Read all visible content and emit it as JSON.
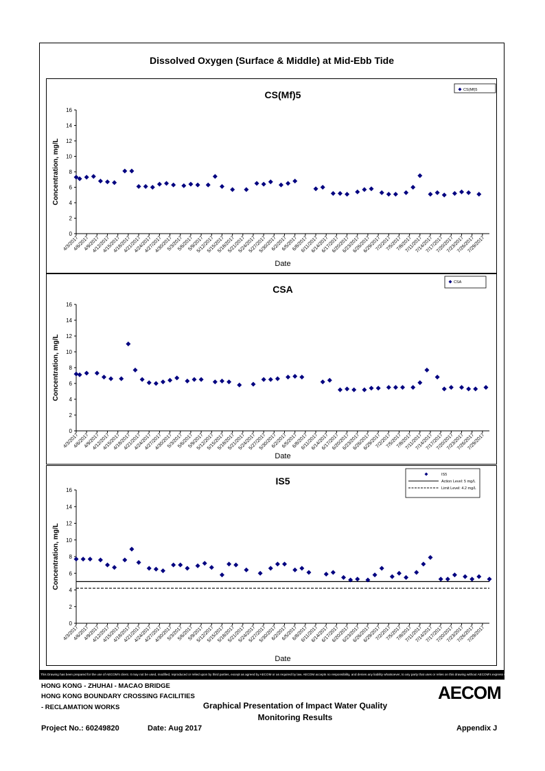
{
  "main_title": "Dissolved Oxygen (Surface & Middle) at Mid-Ebb Tide",
  "disclaimer": "This Drawing has been prepared for the use of AECOM's client. It may not be used, modified, reproduced or relied upon by third parties, except as agreed by AECOM or as required by law. AECOM accepts no responsibility, and denies any liability whatsoever, to any party that uses or relies on this drawing without AECOM's express written consent.",
  "footer": {
    "project_line1": "HONG KONG - ZHUHAI - MACAO BRIDGE",
    "project_line2": "HONG KONG BOUNDARY CROSSING FACILITIES",
    "project_line3": "- RECLAMATION WORKS",
    "report_title_line1": "Graphical Presentation of Impact Water Quality",
    "report_title_line2": "Monitoring Results",
    "project_no": "Project No.: 60249820",
    "date": "Date: Aug 2017",
    "appendix": "Appendix J",
    "logo": "AECOM"
  },
  "chart_data": [
    {
      "type": "scatter",
      "title": "CS(Mf)5",
      "xlabel": "Date",
      "ylabel": "Concentration, mg/L",
      "ylim": [
        0,
        16
      ],
      "yticks": [
        0,
        2,
        4,
        6,
        8,
        10,
        12,
        14,
        16
      ],
      "xticks": [
        "4/3/2017",
        "4/6/2017",
        "4/9/2017",
        "4/12/2017",
        "4/15/2017",
        "4/18/2017",
        "4/21/2017",
        "4/24/2017",
        "4/27/2017",
        "4/30/2017",
        "5/3/2017",
        "5/6/2017",
        "5/9/2017",
        "5/12/2017",
        "5/15/2017",
        "5/18/2017",
        "5/21/2017",
        "5/24/2017",
        "5/27/2017",
        "5/30/2017",
        "6/2/2017",
        "6/5/2017",
        "6/8/2017",
        "6/11/2017",
        "6/14/2017",
        "6/17/2017",
        "6/20/2017",
        "6/23/2017",
        "6/26/2017",
        "6/29/2017",
        "7/2/2017",
        "7/5/2017",
        "7/8/2017",
        "7/11/2017",
        "7/14/2017",
        "7/17/2017",
        "7/20/2017",
        "7/23/2017",
        "7/26/2017",
        "7/29/2017"
      ],
      "xlim": [
        "4/3/2017",
        "7/31/2017"
      ],
      "legend_position": "top-right",
      "grid": false,
      "color": "#000080",
      "series": [
        {
          "name": "CS(Mf)5",
          "marker": "diamond",
          "points": [
            [
              "4/3/2017",
              7.3
            ],
            [
              "4/4/2017",
              7.1
            ],
            [
              "4/6/2017",
              7.3
            ],
            [
              "4/8/2017",
              7.4
            ],
            [
              "4/10/2017",
              6.8
            ],
            [
              "4/12/2017",
              6.7
            ],
            [
              "4/14/2017",
              6.6
            ],
            [
              "4/17/2017",
              8.1
            ],
            [
              "4/19/2017",
              8.1
            ],
            [
              "4/21/2017",
              6.1
            ],
            [
              "4/23/2017",
              6.1
            ],
            [
              "4/25/2017",
              6.0
            ],
            [
              "4/27/2017",
              6.4
            ],
            [
              "4/29/2017",
              6.5
            ],
            [
              "5/1/2017",
              6.3
            ],
            [
              "5/4/2017",
              6.2
            ],
            [
              "5/6/2017",
              6.4
            ],
            [
              "5/8/2017",
              6.3
            ],
            [
              "5/11/2017",
              6.3
            ],
            [
              "5/13/2017",
              7.4
            ],
            [
              "5/15/2017",
              6.1
            ],
            [
              "5/18/2017",
              5.7
            ],
            [
              "5/22/2017",
              5.7
            ],
            [
              "5/25/2017",
              6.5
            ],
            [
              "5/27/2017",
              6.4
            ],
            [
              "5/29/2017",
              6.7
            ],
            [
              "6/1/2017",
              6.3
            ],
            [
              "6/3/2017",
              6.5
            ],
            [
              "6/5/2017",
              6.8
            ],
            [
              "6/11/2017",
              5.8
            ],
            [
              "6/13/2017",
              6.0
            ],
            [
              "6/16/2017",
              5.2
            ],
            [
              "6/18/2017",
              5.2
            ],
            [
              "6/20/2017",
              5.1
            ],
            [
              "6/23/2017",
              5.4
            ],
            [
              "6/25/2017",
              5.7
            ],
            [
              "6/27/2017",
              5.8
            ],
            [
              "6/30/2017",
              5.3
            ],
            [
              "7/2/2017",
              5.1
            ],
            [
              "7/4/2017",
              5.1
            ],
            [
              "7/7/2017",
              5.3
            ],
            [
              "7/9/2017",
              6.0
            ],
            [
              "7/11/2017",
              7.5
            ],
            [
              "7/14/2017",
              5.1
            ],
            [
              "7/16/2017",
              5.3
            ],
            [
              "7/18/2017",
              5.0
            ],
            [
              "7/21/2017",
              5.2
            ],
            [
              "7/23/2017",
              5.4
            ],
            [
              "7/25/2017",
              5.3
            ],
            [
              "7/28/2017",
              5.1
            ]
          ]
        }
      ]
    },
    {
      "type": "scatter",
      "title": "CSA",
      "xlabel": "Date",
      "ylabel": "Concentration, mg/L",
      "ylim": [
        0,
        16
      ],
      "yticks": [
        0,
        2,
        4,
        6,
        8,
        10,
        12,
        14,
        16
      ],
      "xticks": [
        "4/3/2017",
        "4/6/2017",
        "4/9/2017",
        "4/12/2017",
        "4/15/2017",
        "4/18/2017",
        "4/21/2017",
        "4/24/2017",
        "4/27/2017",
        "4/30/2017",
        "5/3/2017",
        "5/6/2017",
        "5/9/2017",
        "5/12/2017",
        "5/15/2017",
        "5/18/2017",
        "5/21/2017",
        "5/24/2017",
        "5/27/2017",
        "5/30/2017",
        "6/2/2017",
        "6/5/2017",
        "6/8/2017",
        "6/11/2017",
        "6/14/2017",
        "6/17/2017",
        "6/20/2017",
        "6/23/2017",
        "6/26/2017",
        "6/29/2017",
        "7/2/2017",
        "7/5/2017",
        "7/8/2017",
        "7/11/2017",
        "7/14/2017",
        "7/17/2017",
        "7/20/2017",
        "7/23/2017",
        "7/26/2017",
        "7/29/2017"
      ],
      "xlim": [
        "4/3/2017",
        "7/31/2017"
      ],
      "legend_position": "top-right",
      "grid": false,
      "color": "#000080",
      "series": [
        {
          "name": "CSA",
          "marker": "diamond",
          "points": [
            [
              "4/3/2017",
              7.2
            ],
            [
              "4/4/2017",
              7.1
            ],
            [
              "4/6/2017",
              7.3
            ],
            [
              "4/9/2017",
              7.3
            ],
            [
              "4/11/2017",
              6.8
            ],
            [
              "4/13/2017",
              6.6
            ],
            [
              "4/16/2017",
              6.6
            ],
            [
              "4/18/2017",
              11.0
            ],
            [
              "4/20/2017",
              7.7
            ],
            [
              "4/22/2017",
              6.5
            ],
            [
              "4/24/2017",
              6.1
            ],
            [
              "4/26/2017",
              6.0
            ],
            [
              "4/28/2017",
              6.2
            ],
            [
              "4/30/2017",
              6.4
            ],
            [
              "5/2/2017",
              6.7
            ],
            [
              "5/5/2017",
              6.3
            ],
            [
              "5/7/2017",
              6.5
            ],
            [
              "5/9/2017",
              6.5
            ],
            [
              "5/13/2017",
              6.2
            ],
            [
              "5/15/2017",
              6.3
            ],
            [
              "5/17/2017",
              6.2
            ],
            [
              "5/20/2017",
              5.8
            ],
            [
              "5/24/2017",
              5.9
            ],
            [
              "5/27/2017",
              6.5
            ],
            [
              "5/29/2017",
              6.5
            ],
            [
              "5/31/2017",
              6.6
            ],
            [
              "6/3/2017",
              6.8
            ],
            [
              "6/5/2017",
              6.9
            ],
            [
              "6/7/2017",
              6.8
            ],
            [
              "6/13/2017",
              6.2
            ],
            [
              "6/15/2017",
              6.4
            ],
            [
              "6/18/2017",
              5.2
            ],
            [
              "6/20/2017",
              5.3
            ],
            [
              "6/22/2017",
              5.2
            ],
            [
              "6/25/2017",
              5.2
            ],
            [
              "6/27/2017",
              5.4
            ],
            [
              "6/29/2017",
              5.4
            ],
            [
              "7/2/2017",
              5.5
            ],
            [
              "7/4/2017",
              5.5
            ],
            [
              "7/6/2017",
              5.5
            ],
            [
              "7/9/2017",
              5.5
            ],
            [
              "7/11/2017",
              6.1
            ],
            [
              "7/13/2017",
              7.7
            ],
            [
              "7/16/2017",
              6.8
            ],
            [
              "7/18/2017",
              5.3
            ],
            [
              "7/20/2017",
              5.5
            ],
            [
              "7/23/2017",
              5.5
            ],
            [
              "7/25/2017",
              5.3
            ],
            [
              "7/27/2017",
              5.3
            ],
            [
              "7/30/2017",
              5.5
            ]
          ]
        }
      ]
    },
    {
      "type": "scatter",
      "title": "IS5",
      "xlabel": "Date",
      "ylabel": "Concentration, mg/L",
      "ylim": [
        0,
        16
      ],
      "yticks": [
        0,
        2,
        4,
        6,
        8,
        10,
        12,
        14,
        16
      ],
      "xticks": [
        "4/3/2017",
        "4/6/2017",
        "4/9/2017",
        "4/12/2017",
        "4/15/2017",
        "4/18/2017",
        "4/21/2017",
        "4/24/2017",
        "4/27/2017",
        "4/30/2017",
        "5/3/2017",
        "5/6/2017",
        "5/9/2017",
        "5/12/2017",
        "5/15/2017",
        "5/18/2017",
        "5/21/2017",
        "5/24/2017",
        "5/27/2017",
        "5/30/2017",
        "6/2/2017",
        "6/5/2017",
        "6/8/2017",
        "6/11/2017",
        "6/14/2017",
        "6/17/2017",
        "6/20/2017",
        "6/23/2017",
        "6/26/2017",
        "6/29/2017",
        "7/2/2017",
        "7/5/2017",
        "7/8/2017",
        "7/11/2017",
        "7/14/2017",
        "7/17/2017",
        "7/20/2017",
        "7/23/2017",
        "7/26/2017",
        "7/29/2017"
      ],
      "xlim": [
        "4/3/2017",
        "7/31/2017"
      ],
      "legend_position": "top-right",
      "grid": false,
      "color": "#000080",
      "series": [
        {
          "name": "IS5",
          "marker": "diamond",
          "points": [
            [
              "4/3/2017",
              7.7
            ],
            [
              "4/5/2017",
              7.7
            ],
            [
              "4/7/2017",
              7.7
            ],
            [
              "4/10/2017",
              7.6
            ],
            [
              "4/12/2017",
              7.0
            ],
            [
              "4/14/2017",
              6.7
            ],
            [
              "4/17/2017",
              7.6
            ],
            [
              "4/19/2017",
              8.9
            ],
            [
              "4/21/2017",
              7.3
            ],
            [
              "4/24/2017",
              6.6
            ],
            [
              "4/26/2017",
              6.5
            ],
            [
              "4/28/2017",
              6.3
            ],
            [
              "5/1/2017",
              7.0
            ],
            [
              "5/3/2017",
              7.0
            ],
            [
              "5/5/2017",
              6.6
            ],
            [
              "5/8/2017",
              6.9
            ],
            [
              "5/10/2017",
              7.2
            ],
            [
              "5/12/2017",
              6.7
            ],
            [
              "5/15/2017",
              5.8
            ],
            [
              "5/17/2017",
              7.1
            ],
            [
              "5/19/2017",
              7.0
            ],
            [
              "5/22/2017",
              6.4
            ],
            [
              "5/26/2017",
              6.0
            ],
            [
              "5/29/2017",
              6.6
            ],
            [
              "5/31/2017",
              7.1
            ],
            [
              "6/2/2017",
              7.1
            ],
            [
              "6/5/2017",
              6.4
            ],
            [
              "6/7/2017",
              6.6
            ],
            [
              "6/9/2017",
              6.1
            ],
            [
              "6/14/2017",
              5.9
            ],
            [
              "6/16/2017",
              6.1
            ],
            [
              "6/19/2017",
              5.5
            ],
            [
              "6/21/2017",
              5.2
            ],
            [
              "6/23/2017",
              5.3
            ],
            [
              "6/26/2017",
              5.2
            ],
            [
              "6/28/2017",
              5.8
            ],
            [
              "6/30/2017",
              6.6
            ],
            [
              "7/3/2017",
              5.6
            ],
            [
              "7/5/2017",
              6.0
            ],
            [
              "7/7/2017",
              5.5
            ],
            [
              "7/10/2017",
              6.1
            ],
            [
              "7/12/2017",
              7.1
            ],
            [
              "7/14/2017",
              7.9
            ],
            [
              "7/17/2017",
              5.3
            ],
            [
              "7/19/2017",
              5.3
            ],
            [
              "7/21/2017",
              5.8
            ],
            [
              "7/24/2017",
              5.6
            ],
            [
              "7/26/2017",
              5.3
            ],
            [
              "7/28/2017",
              5.6
            ],
            [
              "7/31/2017",
              5.3
            ]
          ]
        }
      ],
      "reference_lines": [
        {
          "name": "Action Level: 5 mg/L",
          "value": 5,
          "style": "solid"
        },
        {
          "name": "Limit Level: 4.2 mg/L",
          "value": 4.2,
          "style": "dashed"
        }
      ]
    }
  ]
}
